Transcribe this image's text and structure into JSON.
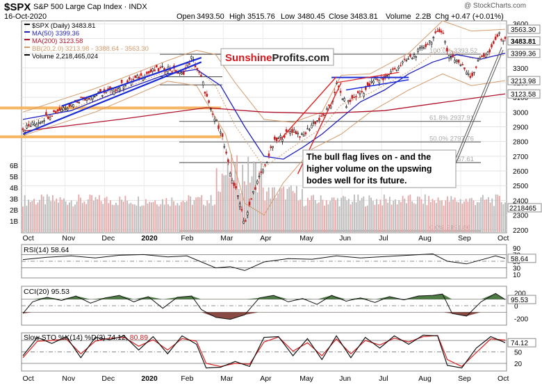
{
  "header": {
    "symbol": "$SPX",
    "name": "S&P 500 Large Cap Index",
    "exchange": "INDX",
    "date": "16-Oct-2020",
    "watermark": "@ StockCharts.com",
    "quote": {
      "open_label": "Open",
      "open": "3493.50",
      "high_label": "High",
      "high": "3515.76",
      "low_label": "Low",
      "low": "3480.45",
      "close_label": "Close",
      "close": "3483.81",
      "volume_label": "Volume",
      "volume": "2.2B",
      "chg_label": "Chg",
      "chg": "+0.47 (+0.01%)"
    }
  },
  "colors": {
    "price": "#000000",
    "ma50": "#1f1fbf",
    "ma200": "#b0122b",
    "bollinger": "#d39a6a",
    "volume_up": "#b9b9b9",
    "volume_down": "#e8a7a7",
    "trendline_blue": "#1a2bd6",
    "trendline_red": "#e0201c",
    "orange_band": "#f5b561",
    "indicator_fill_pos": "#4e7a44",
    "indicator_fill_neg": "#8a4a44",
    "sto_d": "#d81e1e",
    "brand_red": "#d8181c"
  },
  "chart_data": [
    {
      "type": "line",
      "title": "$SPX (Daily) 3483.81",
      "legend": [
        {
          "label": "$SPX (Daily) 3483.81",
          "color": "#000000"
        },
        {
          "label": "MA(50) 3399.36",
          "color": "#1f1fbf"
        },
        {
          "label": "MA(200) 3123.58",
          "color": "#b0122b"
        },
        {
          "label": "BB(20,2.0) 3213.98 - 3388.64 - 3563.30",
          "color": "#d39a6a"
        },
        {
          "label": "Volume 2,218,465,024",
          "color": "#000000"
        }
      ],
      "x_labels": [
        "Oct",
        "Nov",
        "Dec",
        "2020",
        "Feb",
        "Mar",
        "Apr",
        "May",
        "Jun",
        "Jul",
        "Aug",
        "Sep",
        "Oct"
      ],
      "y_ticks": [
        2200,
        2300,
        2400,
        2500,
        2600,
        2700,
        2800,
        2900,
        3000,
        3100,
        3200,
        3300,
        3400,
        3500,
        3600
      ],
      "ylim": [
        2180,
        3620
      ],
      "volume_ticks": [
        "1B",
        "2B",
        "3B",
        "4B",
        "5B",
        "6B"
      ],
      "price_tags": [
        {
          "value": 3563.3,
          "label": "3563.30"
        },
        {
          "value": 3483.81,
          "label": "3483.81"
        },
        {
          "value": 3399.36,
          "label": "3399.36"
        },
        {
          "value": 3213.98,
          "label": "3213.98"
        },
        {
          "value": 3123.58,
          "label": "3123.58"
        }
      ],
      "volume_tag": "2218465",
      "fibonacci": [
        {
          "value": 3393,
          "label": "100.0% 3393.52"
        },
        {
          "value": 2937,
          "label": "61.8% 2937.91"
        },
        {
          "value": 2797,
          "label": "50.0% 2797.76"
        },
        {
          "value": 2657,
          "label": "38.2% 2657.61"
        },
        {
          "value": 2192,
          "label": "0.0% 2191.86"
        }
      ],
      "close_series": [
        {
          "t": 0.0,
          "v": 2887
        },
        {
          "t": 0.03,
          "v": 2930
        },
        {
          "t": 0.06,
          "v": 2990
        },
        {
          "t": 0.09,
          "v": 3040
        },
        {
          "t": 0.12,
          "v": 3090
        },
        {
          "t": 0.15,
          "v": 3115
        },
        {
          "t": 0.18,
          "v": 3140
        },
        {
          "t": 0.21,
          "v": 3190
        },
        {
          "t": 0.24,
          "v": 3235
        },
        {
          "t": 0.27,
          "v": 3280
        },
        {
          "t": 0.3,
          "v": 3300
        },
        {
          "t": 0.33,
          "v": 3255
        },
        {
          "t": 0.35,
          "v": 3370
        },
        {
          "t": 0.37,
          "v": 3230
        },
        {
          "t": 0.39,
          "v": 3000
        },
        {
          "t": 0.41,
          "v": 2880
        },
        {
          "t": 0.43,
          "v": 2580
        },
        {
          "t": 0.45,
          "v": 2390
        },
        {
          "t": 0.46,
          "v": 2240
        },
        {
          "t": 0.48,
          "v": 2480
        },
        {
          "t": 0.5,
          "v": 2620
        },
        {
          "t": 0.52,
          "v": 2790
        },
        {
          "t": 0.54,
          "v": 2840
        },
        {
          "t": 0.56,
          "v": 2880
        },
        {
          "t": 0.58,
          "v": 2830
        },
        {
          "t": 0.6,
          "v": 2920
        },
        {
          "t": 0.62,
          "v": 2960
        },
        {
          "t": 0.64,
          "v": 3050
        },
        {
          "t": 0.65,
          "v": 3190
        },
        {
          "t": 0.67,
          "v": 3050
        },
        {
          "t": 0.69,
          "v": 3110
        },
        {
          "t": 0.71,
          "v": 3150
        },
        {
          "t": 0.73,
          "v": 3220
        },
        {
          "t": 0.75,
          "v": 3230
        },
        {
          "t": 0.77,
          "v": 3290
        },
        {
          "t": 0.79,
          "v": 3340
        },
        {
          "t": 0.81,
          "v": 3380
        },
        {
          "t": 0.83,
          "v": 3440
        },
        {
          "t": 0.85,
          "v": 3500
        },
        {
          "t": 0.87,
          "v": 3570
        },
        {
          "t": 0.88,
          "v": 3400
        },
        {
          "t": 0.9,
          "v": 3350
        },
        {
          "t": 0.92,
          "v": 3280
        },
        {
          "t": 0.93,
          "v": 3240
        },
        {
          "t": 0.95,
          "v": 3380
        },
        {
          "t": 0.97,
          "v": 3410
        },
        {
          "t": 0.985,
          "v": 3530
        },
        {
          "t": 1.0,
          "v": 3484
        }
      ],
      "ma50_series": [
        {
          "t": 0.0,
          "v": 2950
        },
        {
          "t": 0.1,
          "v": 3010
        },
        {
          "t": 0.2,
          "v": 3140
        },
        {
          "t": 0.3,
          "v": 3260
        },
        {
          "t": 0.36,
          "v": 3290
        },
        {
          "t": 0.41,
          "v": 3180
        },
        {
          "t": 0.46,
          "v": 2900
        },
        {
          "t": 0.5,
          "v": 2700
        },
        {
          "t": 0.54,
          "v": 2680
        },
        {
          "t": 0.58,
          "v": 2760
        },
        {
          "t": 0.62,
          "v": 2850
        },
        {
          "t": 0.66,
          "v": 2960
        },
        {
          "t": 0.7,
          "v": 3070
        },
        {
          "t": 0.75,
          "v": 3150
        },
        {
          "t": 0.8,
          "v": 3260
        },
        {
          "t": 0.85,
          "v": 3340
        },
        {
          "t": 0.9,
          "v": 3390
        },
        {
          "t": 0.95,
          "v": 3360
        },
        {
          "t": 1.0,
          "v": 3400
        }
      ],
      "ma200_series": [
        {
          "t": 0.0,
          "v": 2870
        },
        {
          "t": 0.2,
          "v": 2950
        },
        {
          "t": 0.38,
          "v": 3030
        },
        {
          "t": 0.5,
          "v": 3000
        },
        {
          "t": 0.62,
          "v": 2990
        },
        {
          "t": 0.75,
          "v": 3010
        },
        {
          "t": 0.88,
          "v": 3070
        },
        {
          "t": 1.0,
          "v": 3124
        }
      ],
      "bb_upper_series": [
        {
          "t": 0.0,
          "v": 3000
        },
        {
          "t": 0.15,
          "v": 3160
        },
        {
          "t": 0.3,
          "v": 3350
        },
        {
          "t": 0.36,
          "v": 3420
        },
        {
          "t": 0.4,
          "v": 3390
        },
        {
          "t": 0.44,
          "v": 3200
        },
        {
          "t": 0.5,
          "v": 2950
        },
        {
          "t": 0.56,
          "v": 2930
        },
        {
          "t": 0.62,
          "v": 3000
        },
        {
          "t": 0.66,
          "v": 3250
        },
        {
          "t": 0.72,
          "v": 3260
        },
        {
          "t": 0.8,
          "v": 3400
        },
        {
          "t": 0.87,
          "v": 3620
        },
        {
          "t": 0.93,
          "v": 3550
        },
        {
          "t": 1.0,
          "v": 3563
        }
      ],
      "bb_lower_series": [
        {
          "t": 0.0,
          "v": 2840
        },
        {
          "t": 0.15,
          "v": 3000
        },
        {
          "t": 0.3,
          "v": 3210
        },
        {
          "t": 0.36,
          "v": 3180
        },
        {
          "t": 0.42,
          "v": 2850
        },
        {
          "t": 0.46,
          "v": 2380
        },
        {
          "t": 0.5,
          "v": 2300
        },
        {
          "t": 0.54,
          "v": 2520
        },
        {
          "t": 0.6,
          "v": 2750
        },
        {
          "t": 0.66,
          "v": 2850
        },
        {
          "t": 0.72,
          "v": 3000
        },
        {
          "t": 0.8,
          "v": 3150
        },
        {
          "t": 0.87,
          "v": 3260
        },
        {
          "t": 0.93,
          "v": 3180
        },
        {
          "t": 1.0,
          "v": 3214
        }
      ],
      "annotation": "The bull flag lives on - and the higher volume on the upswing bodes well for its future.",
      "brand": {
        "part1": "Sunshine",
        "part2": "Profits.com"
      }
    },
    {
      "type": "line",
      "title": "RSI(14) 58.64",
      "y_ticks": [
        10,
        30,
        50,
        70,
        90
      ],
      "ylim": [
        0,
        100
      ],
      "value_tag": "58.64",
      "series": [
        {
          "t": 0.0,
          "v": 55
        },
        {
          "t": 0.05,
          "v": 62
        },
        {
          "t": 0.1,
          "v": 66
        },
        {
          "t": 0.15,
          "v": 60
        },
        {
          "t": 0.2,
          "v": 68
        },
        {
          "t": 0.25,
          "v": 70
        },
        {
          "t": 0.3,
          "v": 63
        },
        {
          "t": 0.34,
          "v": 66
        },
        {
          "t": 0.37,
          "v": 48
        },
        {
          "t": 0.4,
          "v": 30
        },
        {
          "t": 0.43,
          "v": 34
        },
        {
          "t": 0.46,
          "v": 22
        },
        {
          "t": 0.5,
          "v": 48
        },
        {
          "t": 0.55,
          "v": 58
        },
        {
          "t": 0.6,
          "v": 56
        },
        {
          "t": 0.65,
          "v": 66
        },
        {
          "t": 0.7,
          "v": 60
        },
        {
          "t": 0.75,
          "v": 64
        },
        {
          "t": 0.8,
          "v": 68
        },
        {
          "t": 0.85,
          "v": 72
        },
        {
          "t": 0.88,
          "v": 50
        },
        {
          "t": 0.92,
          "v": 42
        },
        {
          "t": 0.96,
          "v": 58
        },
        {
          "t": 0.98,
          "v": 66
        },
        {
          "t": 1.0,
          "v": 58.64
        }
      ]
    },
    {
      "type": "area",
      "title": "CCI(20) 95.53",
      "y_ticks": [
        -200,
        0,
        100,
        200
      ],
      "ylim": [
        -300,
        300
      ],
      "value_tag": "95.53",
      "series": [
        {
          "t": 0.0,
          "v": -120
        },
        {
          "t": 0.02,
          "v": 60
        },
        {
          "t": 0.05,
          "v": 130
        },
        {
          "t": 0.08,
          "v": 80
        },
        {
          "t": 0.11,
          "v": 150
        },
        {
          "t": 0.14,
          "v": 40
        },
        {
          "t": 0.17,
          "v": 120
        },
        {
          "t": 0.2,
          "v": 160
        },
        {
          "t": 0.23,
          "v": 60
        },
        {
          "t": 0.26,
          "v": 140
        },
        {
          "t": 0.29,
          "v": -40
        },
        {
          "t": 0.32,
          "v": 130
        },
        {
          "t": 0.35,
          "v": 150
        },
        {
          "t": 0.37,
          "v": -60
        },
        {
          "t": 0.4,
          "v": -180
        },
        {
          "t": 0.43,
          "v": -210
        },
        {
          "t": 0.46,
          "v": -140
        },
        {
          "t": 0.49,
          "v": 120
        },
        {
          "t": 0.52,
          "v": 160
        },
        {
          "t": 0.55,
          "v": 60
        },
        {
          "t": 0.58,
          "v": 110
        },
        {
          "t": 0.61,
          "v": 20
        },
        {
          "t": 0.64,
          "v": 160
        },
        {
          "t": 0.67,
          "v": 70
        },
        {
          "t": 0.7,
          "v": 120
        },
        {
          "t": 0.73,
          "v": 50
        },
        {
          "t": 0.76,
          "v": 140
        },
        {
          "t": 0.79,
          "v": 90
        },
        {
          "t": 0.82,
          "v": 150
        },
        {
          "t": 0.85,
          "v": 160
        },
        {
          "t": 0.87,
          "v": 180
        },
        {
          "t": 0.89,
          "v": -120
        },
        {
          "t": 0.92,
          "v": -160
        },
        {
          "t": 0.95,
          "v": 60
        },
        {
          "t": 0.98,
          "v": 190
        },
        {
          "t": 1.0,
          "v": 95.53
        }
      ]
    },
    {
      "type": "line",
      "title": "Slow STO %K(14) %D(3) 74.12,",
      "title_d": "80.89",
      "y_ticks": [
        20,
        50,
        80
      ],
      "ylim": [
        0,
        100
      ],
      "value_tag": "74.12",
      "k_series": [
        {
          "t": 0.0,
          "v": 40
        },
        {
          "t": 0.03,
          "v": 88
        },
        {
          "t": 0.06,
          "v": 72
        },
        {
          "t": 0.09,
          "v": 90
        },
        {
          "t": 0.12,
          "v": 35
        },
        {
          "t": 0.15,
          "v": 88
        },
        {
          "t": 0.18,
          "v": 82
        },
        {
          "t": 0.21,
          "v": 92
        },
        {
          "t": 0.24,
          "v": 55
        },
        {
          "t": 0.27,
          "v": 90
        },
        {
          "t": 0.3,
          "v": 45
        },
        {
          "t": 0.33,
          "v": 92
        },
        {
          "t": 0.36,
          "v": 70
        },
        {
          "t": 0.38,
          "v": 8
        },
        {
          "t": 0.41,
          "v": 10
        },
        {
          "t": 0.44,
          "v": 25
        },
        {
          "t": 0.47,
          "v": 12
        },
        {
          "t": 0.5,
          "v": 88
        },
        {
          "t": 0.53,
          "v": 90
        },
        {
          "t": 0.56,
          "v": 40
        },
        {
          "t": 0.59,
          "v": 85
        },
        {
          "t": 0.62,
          "v": 30
        },
        {
          "t": 0.65,
          "v": 92
        },
        {
          "t": 0.68,
          "v": 35
        },
        {
          "t": 0.71,
          "v": 88
        },
        {
          "t": 0.74,
          "v": 60
        },
        {
          "t": 0.77,
          "v": 92
        },
        {
          "t": 0.8,
          "v": 70
        },
        {
          "t": 0.83,
          "v": 94
        },
        {
          "t": 0.86,
          "v": 92
        },
        {
          "t": 0.88,
          "v": 15
        },
        {
          "t": 0.91,
          "v": 8
        },
        {
          "t": 0.94,
          "v": 60
        },
        {
          "t": 0.97,
          "v": 90
        },
        {
          "t": 1.0,
          "v": 74.12
        }
      ],
      "d_series": [
        {
          "t": 0.0,
          "v": 35
        },
        {
          "t": 0.03,
          "v": 78
        },
        {
          "t": 0.06,
          "v": 80
        },
        {
          "t": 0.09,
          "v": 84
        },
        {
          "t": 0.12,
          "v": 45
        },
        {
          "t": 0.15,
          "v": 78
        },
        {
          "t": 0.18,
          "v": 86
        },
        {
          "t": 0.21,
          "v": 88
        },
        {
          "t": 0.24,
          "v": 65
        },
        {
          "t": 0.27,
          "v": 82
        },
        {
          "t": 0.3,
          "v": 55
        },
        {
          "t": 0.33,
          "v": 85
        },
        {
          "t": 0.36,
          "v": 78
        },
        {
          "t": 0.38,
          "v": 20
        },
        {
          "t": 0.41,
          "v": 12
        },
        {
          "t": 0.44,
          "v": 20
        },
        {
          "t": 0.47,
          "v": 18
        },
        {
          "t": 0.5,
          "v": 76
        },
        {
          "t": 0.53,
          "v": 89
        },
        {
          "t": 0.56,
          "v": 52
        },
        {
          "t": 0.59,
          "v": 74
        },
        {
          "t": 0.62,
          "v": 40
        },
        {
          "t": 0.65,
          "v": 84
        },
        {
          "t": 0.68,
          "v": 45
        },
        {
          "t": 0.71,
          "v": 80
        },
        {
          "t": 0.74,
          "v": 68
        },
        {
          "t": 0.77,
          "v": 86
        },
        {
          "t": 0.8,
          "v": 76
        },
        {
          "t": 0.83,
          "v": 90
        },
        {
          "t": 0.86,
          "v": 93
        },
        {
          "t": 0.88,
          "v": 30
        },
        {
          "t": 0.91,
          "v": 12
        },
        {
          "t": 0.94,
          "v": 48
        },
        {
          "t": 0.97,
          "v": 84
        },
        {
          "t": 1.0,
          "v": 80.89
        }
      ]
    }
  ]
}
